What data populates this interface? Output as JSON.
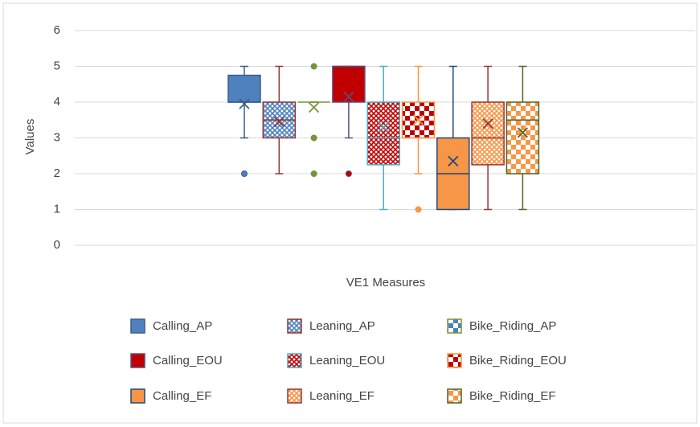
{
  "chart_data": {
    "type": "box",
    "xlabel": "VE1 Measures",
    "ylabel": "Values",
    "ylim": [
      0,
      6
    ],
    "yticks": [
      0,
      1,
      2,
      3,
      4,
      5,
      6
    ],
    "grid": true,
    "series": [
      {
        "name": "Calling_AP",
        "color": "#4f81bd",
        "stroke": "#385d8a",
        "pattern": "solid",
        "min": 3,
        "q1": 4,
        "median": 4,
        "q3": 4.75,
        "max": 5,
        "mean": 3.95,
        "outliers": [
          2
        ]
      },
      {
        "name": "Leaning_AP",
        "color": "#4f81bd",
        "stroke": "#953735",
        "pattern": "crosshatch",
        "min": 2,
        "q1": 3,
        "median": 3.5,
        "q3": 4,
        "max": 5,
        "mean": 3.45,
        "outliers": []
      },
      {
        "name": "Bike_Riding_AP",
        "color": "#4f81bd",
        "stroke": "#77933c",
        "pattern": "checker",
        "min": 4,
        "q1": 4,
        "median": 4,
        "q3": 4,
        "max": 4,
        "mean": 3.85,
        "outliers": [
          2,
          3,
          5
        ]
      },
      {
        "name": "Calling_EOU",
        "color": "#c00000",
        "stroke": "#604a7b",
        "pattern": "solid",
        "min": 3,
        "q1": 4,
        "median": 5,
        "q3": 5,
        "max": 5,
        "mean": 4.15,
        "outliers": [
          2
        ]
      },
      {
        "name": "Leaning_EOU",
        "color": "#c00000",
        "stroke": "#4bacc6",
        "pattern": "crosshatch",
        "min": 1,
        "q1": 2.25,
        "median": 3,
        "q3": 4,
        "max": 5,
        "mean": 3.3,
        "outliers": []
      },
      {
        "name": "Bike_Riding_EOU",
        "color": "#c00000",
        "stroke": "#f79646",
        "pattern": "checker",
        "min": 2,
        "q1": 3,
        "median": 3,
        "q3": 4,
        "max": 5,
        "mean": 3.5,
        "outliers": [
          1
        ]
      },
      {
        "name": "Calling_EF",
        "color": "#f79646",
        "stroke": "#1f497d",
        "pattern": "solid",
        "min": 1,
        "q1": 1,
        "median": 2,
        "q3": 3,
        "max": 5,
        "mean": 2.35,
        "outliers": []
      },
      {
        "name": "Leaning_EF",
        "color": "#f79646",
        "stroke": "#953735",
        "pattern": "crosshatch",
        "min": 1,
        "q1": 2.25,
        "median": 3,
        "q3": 4,
        "max": 5,
        "mean": 3.4,
        "outliers": []
      },
      {
        "name": "Bike_Riding_EF",
        "color": "#f79646",
        "stroke": "#4f6228",
        "pattern": "checker",
        "min": 1,
        "q1": 2,
        "median": 3.5,
        "q3": 4,
        "max": 5,
        "mean": 3.15,
        "outliers": []
      }
    ]
  }
}
